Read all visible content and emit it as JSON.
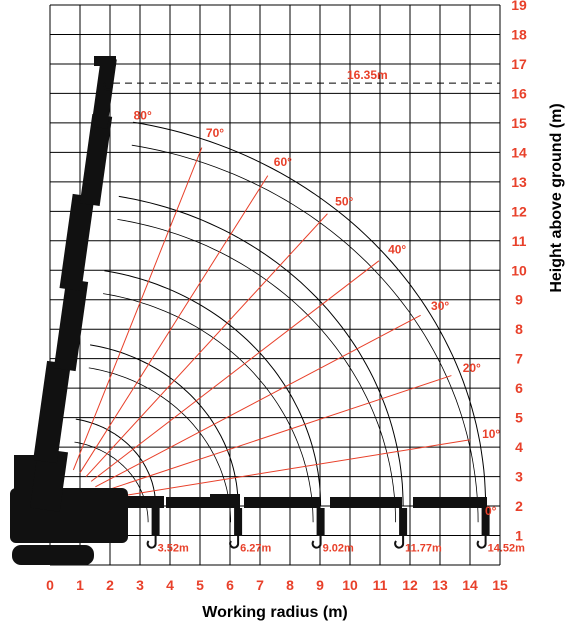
{
  "colors": {
    "grid": "#000000",
    "accent": "#e8402a",
    "machine": "#111111",
    "background": "#ffffff"
  },
  "axes": {
    "x_title": "Working radius (m)",
    "y_title": "Height above ground (m)",
    "x_ticks": [
      "0",
      "1",
      "2",
      "3",
      "4",
      "5",
      "6",
      "7",
      "8",
      "9",
      "10",
      "11",
      "12",
      "13",
      "14",
      "15"
    ],
    "y_ticks": [
      "1",
      "2",
      "3",
      "4",
      "5",
      "6",
      "7",
      "8",
      "9",
      "10",
      "11",
      "12",
      "13",
      "14",
      "15",
      "16",
      "17",
      "18",
      "19"
    ]
  },
  "max_height_label": "16.35m",
  "chart_data": {
    "type": "line",
    "title": "",
    "xlabel": "Working radius (m)",
    "ylabel": "Height above ground (m)",
    "xlim": [
      0,
      15
    ],
    "ylim": [
      0,
      19
    ],
    "grid": true,
    "boom_pivot": [
      0.3,
      2.0
    ],
    "boom_angles": [
      {
        "label": "80°",
        "deg": 80
      },
      {
        "label": "70°",
        "deg": 70
      },
      {
        "label": "60°",
        "deg": 60
      },
      {
        "label": "50°",
        "deg": 50
      },
      {
        "label": "40°",
        "deg": 40
      },
      {
        "label": "30°",
        "deg": 30
      },
      {
        "label": "20°",
        "deg": 20
      },
      {
        "label": "10°",
        "deg": 10
      },
      {
        "label": "0°",
        "deg": 0
      }
    ],
    "max_radii": [
      {
        "label": "3.52m",
        "value": 3.52
      },
      {
        "label": "6.27m",
        "value": 6.27
      },
      {
        "label": "9.02m",
        "value": 9.02
      },
      {
        "label": "11.77m",
        "value": 11.77
      },
      {
        "label": "14.52m",
        "value": 14.52
      }
    ],
    "max_height": {
      "label": "16.35m",
      "value": 16.35
    }
  }
}
